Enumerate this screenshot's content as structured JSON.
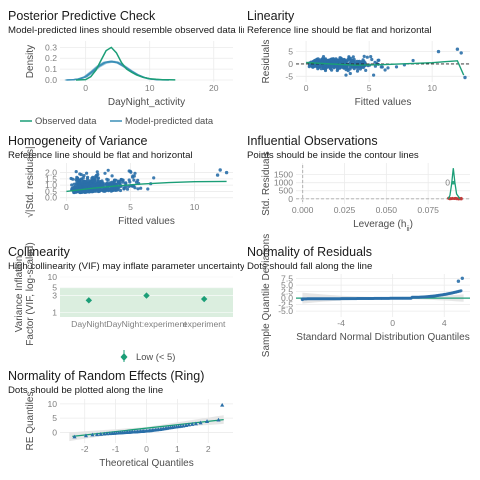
{
  "colors": {
    "observed": "#1b9e77",
    "predicted": "#3a8fb7",
    "points": "#2a6fa8",
    "reference": "#1b9e77",
    "dashed": "#222222",
    "grid": "#ebebeb",
    "panel_bg": "#ffffff",
    "vif_low_band": "#dbeedf",
    "contour": "#aaaaaa"
  },
  "chart_data": [
    {
      "id": "ppc",
      "type": "line",
      "title": "Posterior Predictive Check",
      "subtitle": "Model-predicted lines should resemble observed data line",
      "xlabel": "DayNight_activity",
      "ylabel": "Density",
      "xlim": [
        -4,
        23
      ],
      "ylim": [
        0,
        0.34
      ],
      "xticks": [
        0,
        10,
        20
      ],
      "yticks": [
        0.0,
        0.1,
        0.2,
        0.3
      ],
      "grid": true,
      "legend": [
        "Observed data",
        "Model-predicted data"
      ],
      "legend_placement": "bottom",
      "series": [
        {
          "name": "Observed data",
          "x": [
            -1.5,
            0,
            0.8,
            1.6,
            2.4,
            3.2,
            4,
            4.8,
            5.6,
            6.4,
            7.2,
            8,
            9,
            10,
            11,
            12,
            13,
            14
          ],
          "y": [
            0,
            0.004,
            0.03,
            0.09,
            0.18,
            0.27,
            0.3,
            0.25,
            0.16,
            0.1,
            0.07,
            0.045,
            0.025,
            0.012,
            0.006,
            0.003,
            0.002,
            0.001
          ]
        },
        {
          "name": "Model-predicted data",
          "x": [
            -3,
            -2,
            -1,
            0,
            1,
            2,
            3,
            4,
            5,
            6,
            7,
            8,
            9,
            10,
            11,
            12,
            13
          ],
          "y": [
            0,
            0.002,
            0.01,
            0.03,
            0.075,
            0.125,
            0.16,
            0.17,
            0.16,
            0.125,
            0.085,
            0.05,
            0.025,
            0.01,
            0.004,
            0.001,
            0
          ]
        }
      ]
    },
    {
      "id": "linearity",
      "type": "scatter",
      "title": "Linearity",
      "subtitle": "Reference line should be flat and horizontal",
      "xlabel": "Fitted values",
      "ylabel": "Residuals",
      "xlim": [
        -0.8,
        13
      ],
      "ylim": [
        -6.5,
        8.5
      ],
      "xticks": [
        0,
        5,
        10
      ],
      "yticks": [
        -5,
        0,
        5
      ],
      "grid": true,
      "reference_y": 0,
      "smooth": {
        "x": [
          0,
          2,
          4,
          6,
          8,
          10,
          11,
          12,
          12.5
        ],
        "y": [
          0.6,
          0,
          -0.5,
          -0.3,
          0.1,
          0.5,
          0.9,
          1.3,
          -4.5
        ]
      },
      "outliers": [
        [
          12,
          6
        ],
        [
          12.3,
          4.5
        ],
        [
          12.6,
          -5.5
        ],
        [
          10.5,
          5
        ]
      ]
    },
    {
      "id": "homogeneity",
      "type": "scatter",
      "title": "Homogeneity of Variance",
      "subtitle": "Reference line should be flat and horizontal",
      "xlabel": "Fitted values",
      "ylabel": "√|Std. residuals|",
      "xlim": [
        -0.5,
        13
      ],
      "ylim": [
        -0.1,
        2.6
      ],
      "xticks": [
        0,
        5,
        10
      ],
      "yticks": [
        0.0,
        0.5,
        1.0,
        1.5,
        2.0
      ],
      "grid": true,
      "smooth": {
        "x": [
          0,
          2,
          4,
          6,
          8,
          10,
          12.5
        ],
        "y": [
          0.5,
          0.75,
          0.95,
          1.1,
          1.2,
          1.27,
          1.3
        ]
      },
      "outliers": [
        [
          12,
          2.2
        ],
        [
          12.5,
          2.0
        ],
        [
          11.8,
          1.8
        ]
      ]
    },
    {
      "id": "influential",
      "type": "scatter",
      "title": "Influential Observations",
      "subtitle": "Points should be inside the contour lines",
      "xlabel": "Leverage (h",
      "xlabel_sub": "ii",
      "xlabel_end": ")",
      "ylabel": "Std. Residuals",
      "xlim": [
        -0.004,
        0.1
      ],
      "ylim": [
        -200,
        2100
      ],
      "xticks": [
        0.0,
        0.025,
        0.05,
        0.075
      ],
      "xtick_labels": [
        "0.000",
        "0.025",
        "0.050",
        "0.075"
      ],
      "yticks": [
        0,
        500,
        1000,
        1500
      ],
      "grid": true,
      "point_label": "0",
      "point": [
        0.09,
        1000
      ],
      "cluster_x": [
        0.087,
        0.095
      ]
    },
    {
      "id": "collinearity",
      "type": "scatter",
      "title": "Collinearity",
      "subtitle": "High collinearity (VIF) may inflate parameter uncertainty",
      "xlabel": "",
      "ylabel": "Variance Inflation\nFactor (VIF, log-scaled)",
      "yticks": [
        1,
        3,
        5,
        10
      ],
      "ylim": [
        0.85,
        13
      ],
      "log_y": true,
      "grid": true,
      "categories": [
        "DayNight",
        "DayNight:experiment",
        "experiment"
      ],
      "values": [
        2.2,
        3.0,
        2.4
      ],
      "ci_low": [
        2.0,
        2.7,
        2.2
      ],
      "ci_high": [
        2.4,
        3.3,
        2.7
      ],
      "legend": [
        "Low (< 5)"
      ],
      "legend_placement": "bottom"
    },
    {
      "id": "normality_residuals",
      "type": "scatter",
      "title": "Normality of Residuals",
      "subtitle": "Dots should fall along the line",
      "xlabel": "Standard Normal Distribution Quantiles",
      "ylabel": "Sample Quantile Deviations",
      "xlim": [
        -7.5,
        6
      ],
      "ylim": [
        -6.5,
        8.5
      ],
      "xticks": [
        -4,
        0,
        4
      ],
      "yticks": [
        -5.0,
        -2.5,
        0.0,
        2.5,
        5.0,
        7.5
      ],
      "ytick_labels": [
        "-5.0",
        "-2.5",
        "0.0",
        "2.5",
        "5.0",
        "7.5"
      ],
      "grid": true,
      "reference_y": 0
    },
    {
      "id": "normality_random",
      "type": "scatter",
      "title": "Normality of Random Effects (Ring)",
      "subtitle": "Dots should be plotted along the line",
      "xlabel": "Theoretical Quantiles",
      "ylabel": "RE Quantiles",
      "xlim": [
        -2.8,
        2.8
      ],
      "ylim": [
        -3,
        11
      ],
      "xticks": [
        -2,
        -1,
        0,
        1,
        2
      ],
      "yticks": [
        0,
        5,
        10
      ],
      "grid": true,
      "points_x": [
        -2.33,
        -1.96,
        -1.75,
        -1.6,
        -1.48,
        -1.37,
        -1.28,
        -1.19,
        -1.11,
        -1.04,
        -0.97,
        -0.9,
        -0.84,
        -0.78,
        -0.72,
        -0.66,
        -0.61,
        -0.55,
        -0.5,
        -0.45,
        -0.39,
        -0.34,
        -0.29,
        -0.24,
        -0.19,
        -0.14,
        -0.1,
        -0.05,
        0,
        0.05,
        0.1,
        0.14,
        0.19,
        0.24,
        0.29,
        0.34,
        0.39,
        0.45,
        0.5,
        0.55,
        0.61,
        0.66,
        0.72,
        0.78,
        0.84,
        0.9,
        0.97,
        1.04,
        1.11,
        1.19,
        1.28,
        1.37,
        1.48,
        1.6,
        1.75,
        1.96,
        2.33,
        2.45
      ],
      "points_y": [
        -1.6,
        -1.2,
        -0.9,
        -0.8,
        -0.7,
        -0.6,
        -0.5,
        -0.45,
        -0.4,
        -0.35,
        -0.3,
        -0.25,
        -0.2,
        -0.15,
        -0.1,
        -0.05,
        0,
        0,
        0.05,
        0.1,
        0.1,
        0.15,
        0.2,
        0.25,
        0.3,
        0.3,
        0.35,
        0.4,
        0.45,
        0.5,
        0.55,
        0.6,
        0.7,
        0.75,
        0.8,
        0.9,
        0.95,
        1.0,
        1.1,
        1.2,
        1.3,
        1.4,
        1.5,
        1.6,
        1.7,
        1.8,
        1.9,
        2.0,
        2.1,
        2.2,
        2.4,
        2.6,
        2.8,
        3.0,
        3.3,
        3.8,
        4.3,
        9.5
      ],
      "line": {
        "x": [
          -2.4,
          2.5
        ],
        "y": [
          -1.4,
          4.5
        ]
      }
    }
  ]
}
